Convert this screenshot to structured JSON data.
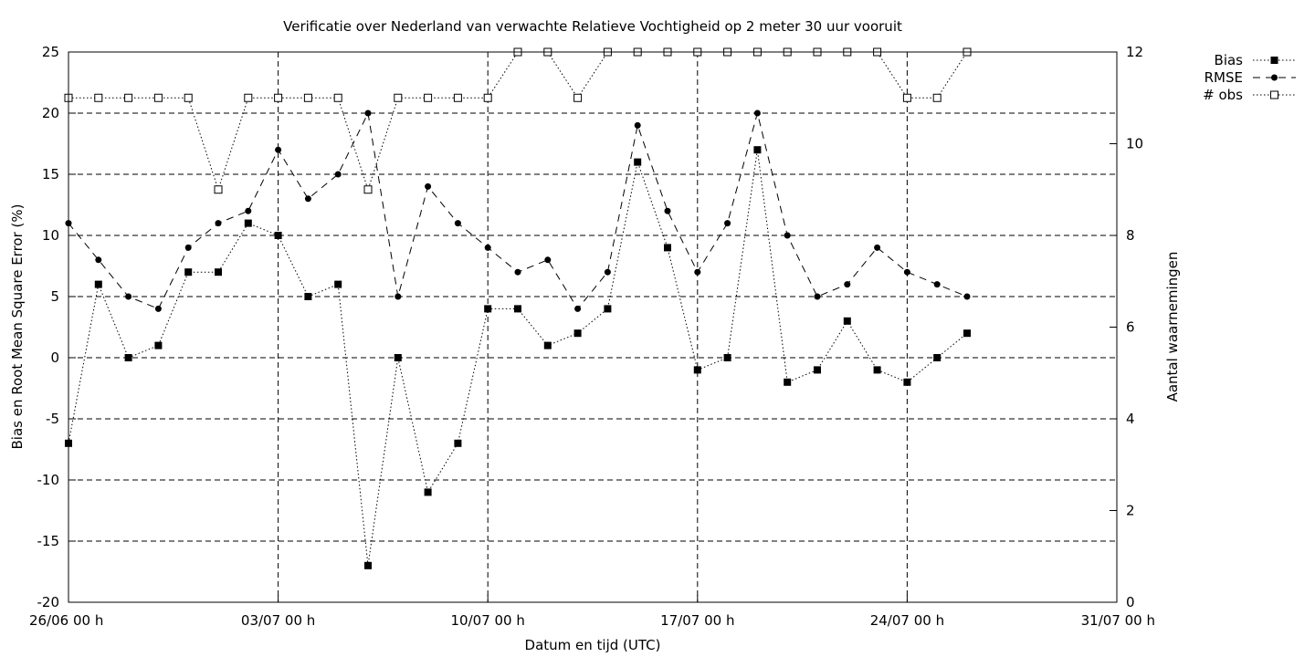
{
  "chart_data": {
    "type": "line",
    "title": "Verificatie over Nederland van verwachte Relatieve Vochtigheid op 2 meter 30 uur vooruit",
    "xlabel": "Datum en tijd (UTC)",
    "ylabel": "Bias en Root Mean Square Error (%)",
    "y2label": "Aantal waarnemingen",
    "xlim": [
      0,
      35
    ],
    "ylim": [
      -20,
      25
    ],
    "y2lim": [
      0,
      12
    ],
    "xticks": [
      {
        "value": 0,
        "label": "26/06 00 h"
      },
      {
        "value": 7,
        "label": "03/07 00 h"
      },
      {
        "value": 14,
        "label": "10/07 00 h"
      },
      {
        "value": 21,
        "label": "17/07 00 h"
      },
      {
        "value": 28,
        "label": "24/07 00 h"
      },
      {
        "value": 35,
        "label": "31/07 00 h"
      }
    ],
    "yticks": [
      {
        "value": 25,
        "label": "25"
      },
      {
        "value": 20,
        "label": "20"
      },
      {
        "value": 15,
        "label": "15"
      },
      {
        "value": 10,
        "label": "10"
      },
      {
        "value": 5,
        "label": "5"
      },
      {
        "value": 0,
        "label": "0"
      },
      {
        "value": -5,
        "label": "-5"
      },
      {
        "value": -10,
        "label": "-10"
      },
      {
        "value": -15,
        "label": "-15"
      },
      {
        "value": -20,
        "label": "-20"
      }
    ],
    "y2ticks": [
      {
        "value": 12,
        "label": "12"
      },
      {
        "value": 10,
        "label": "10"
      },
      {
        "value": 8,
        "label": "8"
      },
      {
        "value": 6,
        "label": "6"
      },
      {
        "value": 4,
        "label": "4"
      },
      {
        "value": 2,
        "label": "2"
      },
      {
        "value": 0,
        "label": "0"
      }
    ],
    "grid": true,
    "legend_position": "top-right, outside plot",
    "x": [
      0,
      1,
      2,
      3,
      4,
      5,
      6,
      7,
      8,
      9,
      10,
      11,
      12,
      13,
      14,
      15,
      16,
      17,
      18,
      19,
      20,
      21,
      22,
      23,
      24,
      25,
      26,
      27,
      28,
      29,
      30
    ],
    "series": [
      {
        "name": "Bias",
        "axis": "left",
        "line": "dotted",
        "marker": "filled-square",
        "values": [
          -7,
          6,
          0,
          1,
          7,
          7,
          11,
          10,
          5,
          6,
          -17,
          0,
          -11,
          -7,
          4,
          4,
          1,
          2,
          4,
          16,
          9,
          -1,
          0,
          17,
          -2,
          -1,
          3,
          -1,
          -2,
          0,
          2
        ]
      },
      {
        "name": "RMSE",
        "axis": "left",
        "line": "dashed",
        "marker": "filled-circle",
        "values": [
          11,
          8,
          5,
          4,
          9,
          11,
          12,
          17,
          13,
          15,
          20,
          5,
          14,
          11,
          9,
          7,
          8,
          4,
          7,
          19,
          12,
          7,
          11,
          20,
          10,
          5,
          6,
          9,
          7,
          6,
          5
        ]
      },
      {
        "name": "# obs",
        "axis": "right",
        "line": "dotted",
        "marker": "open-square",
        "values": [
          11,
          11,
          11,
          11,
          11,
          9,
          11,
          11,
          11,
          11,
          9,
          11,
          11,
          11,
          11,
          12,
          12,
          11,
          12,
          12,
          12,
          12,
          12,
          12,
          12,
          12,
          12,
          12,
          11,
          11,
          12
        ]
      }
    ]
  }
}
